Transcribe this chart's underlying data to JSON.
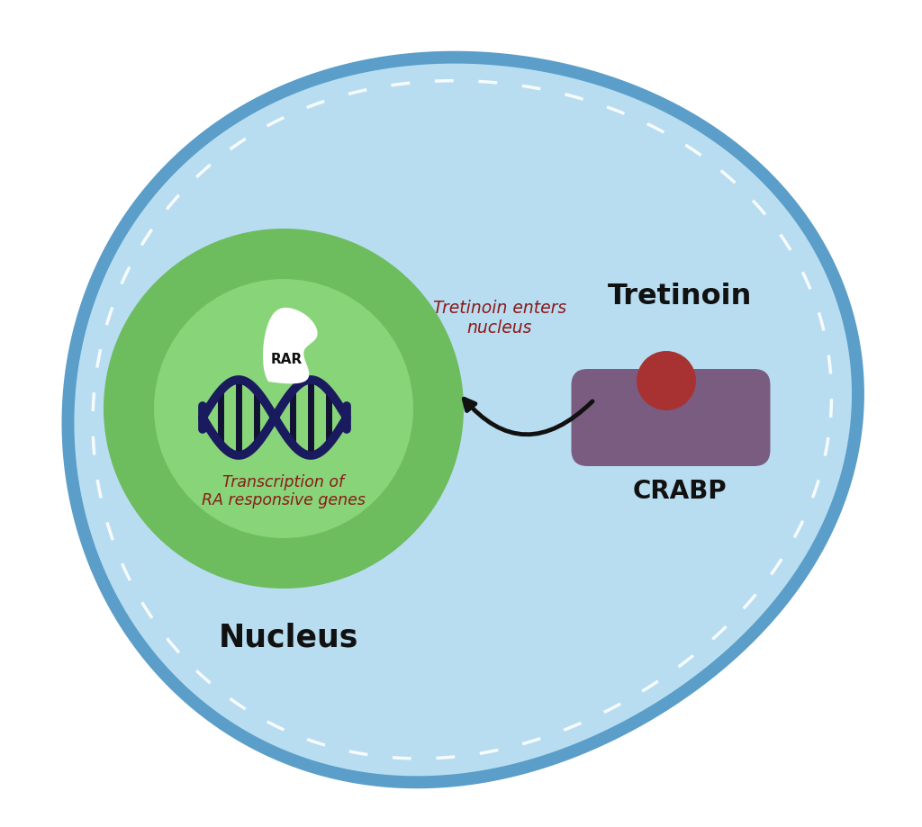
{
  "bg_color": "#ffffff",
  "cell_fill": "#b8ddf0",
  "cell_border": "#5a9ec9",
  "nucleus_fill_outer": "#6dbc5e",
  "nucleus_fill_inner": "#88d478",
  "crabp_body_color": "#7a5c80",
  "crabp_ball_color": "#a83232",
  "rar_color": "#ffffff",
  "dna_color": "#1a1a5e",
  "dna_rung_color": "#111133",
  "arrow_color": "#111111",
  "text_red": "#8b1a1a",
  "text_black": "#111111",
  "title_text": "Tretinoin",
  "crabp_label": "CRABP",
  "nucleus_label": "Nucleus",
  "arrow_label": "Tretinoin enters\nnucleus",
  "transcription_label": "Transcription of\nRA responsive genes",
  "rar_label": "RAR"
}
